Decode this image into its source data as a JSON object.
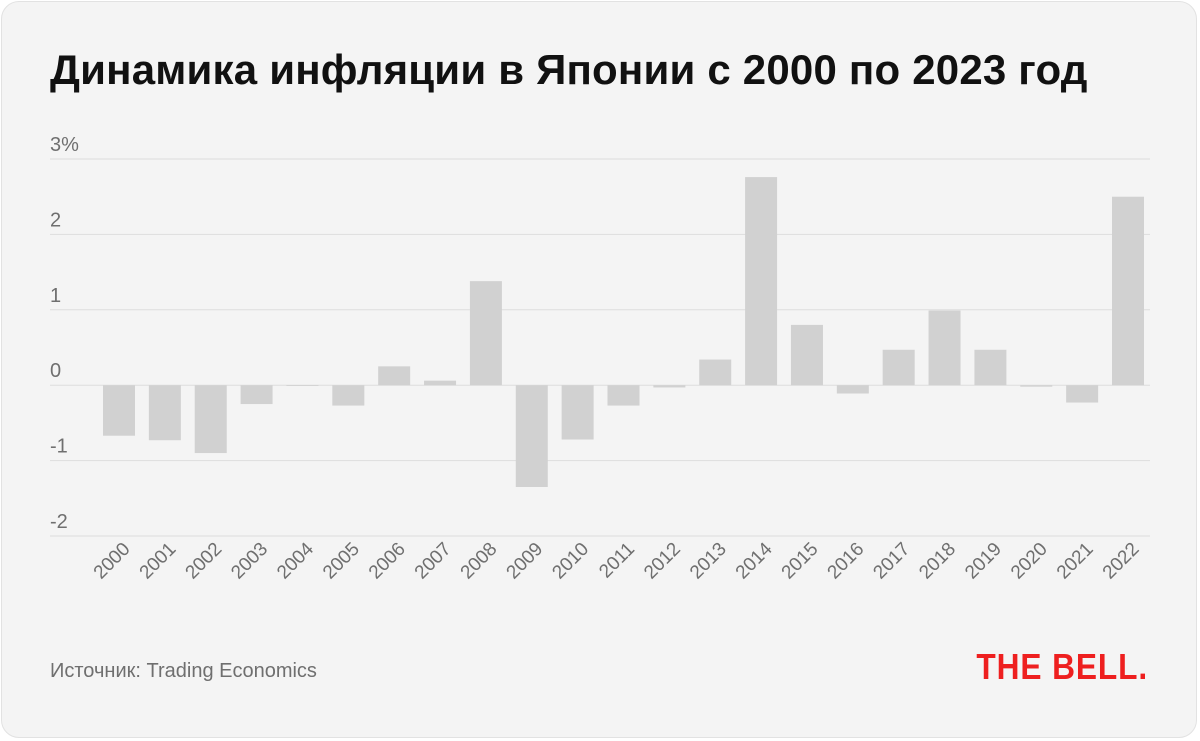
{
  "title": "Динамика инфляции в Японии с 2000 по 2023 год",
  "source": "Источник: Trading Economics",
  "logo": "THE BELL.",
  "colors": {
    "bar": "#d1d1d1",
    "grid": "#dddddd",
    "text": "#6f6f6f",
    "logo": "#ee1f1f"
  },
  "chart_data": {
    "type": "bar",
    "categories": [
      "2000",
      "2001",
      "2002",
      "2003",
      "2004",
      "2005",
      "2006",
      "2007",
      "2008",
      "2009",
      "2010",
      "2011",
      "2012",
      "2013",
      "2014",
      "2015",
      "2016",
      "2017",
      "2018",
      "2019",
      "2020",
      "2021",
      "2022"
    ],
    "values": [
      -0.67,
      -0.73,
      -0.9,
      -0.25,
      0.0,
      -0.27,
      0.25,
      0.06,
      1.38,
      -1.35,
      -0.72,
      -0.27,
      -0.03,
      0.34,
      2.76,
      0.8,
      -0.11,
      0.47,
      0.99,
      0.47,
      -0.02,
      -0.23,
      2.5
    ],
    "ylim": [
      -2,
      3
    ],
    "yticks": [
      {
        "value": 3,
        "label": "3%"
      },
      {
        "value": 2,
        "label": "2"
      },
      {
        "value": 1,
        "label": "1"
      },
      {
        "value": 0,
        "label": "0"
      },
      {
        "value": -1,
        "label": "-1"
      },
      {
        "value": -2,
        "label": "-2"
      }
    ],
    "grid": true,
    "legend": "none"
  }
}
